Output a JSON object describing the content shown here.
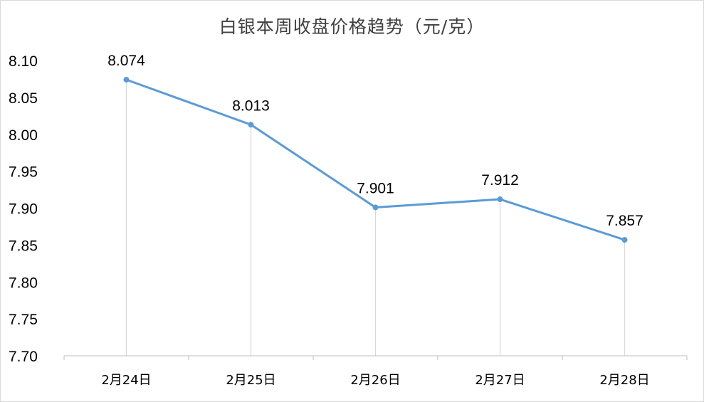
{
  "chart_data": {
    "type": "line",
    "title": "白银本周收盘价格趋势（元/克）",
    "categories": [
      "2月24日",
      "2月25日",
      "2月26日",
      "2月27日",
      "2月28日"
    ],
    "series": [
      {
        "values": [
          8.074,
          8.013,
          7.901,
          7.912,
          7.857
        ],
        "data_labels": [
          "8.074",
          "8.013",
          "7.901",
          "7.912",
          "7.857"
        ]
      }
    ],
    "y_ticks": [
      "7.70",
      "7.75",
      "7.80",
      "7.85",
      "7.90",
      "7.95",
      "8.00",
      "8.05",
      "8.10"
    ],
    "ylim": [
      7.7,
      8.1
    ],
    "xlabel": "",
    "ylabel": "",
    "grid": false,
    "drop_lines": true,
    "legend": "none",
    "colors": {
      "line": "#5b9bd5",
      "drop_line": "#d9d9d9",
      "axis": "#bfbfbf",
      "frame": "#d9d9d9",
      "title": "#404040"
    }
  }
}
